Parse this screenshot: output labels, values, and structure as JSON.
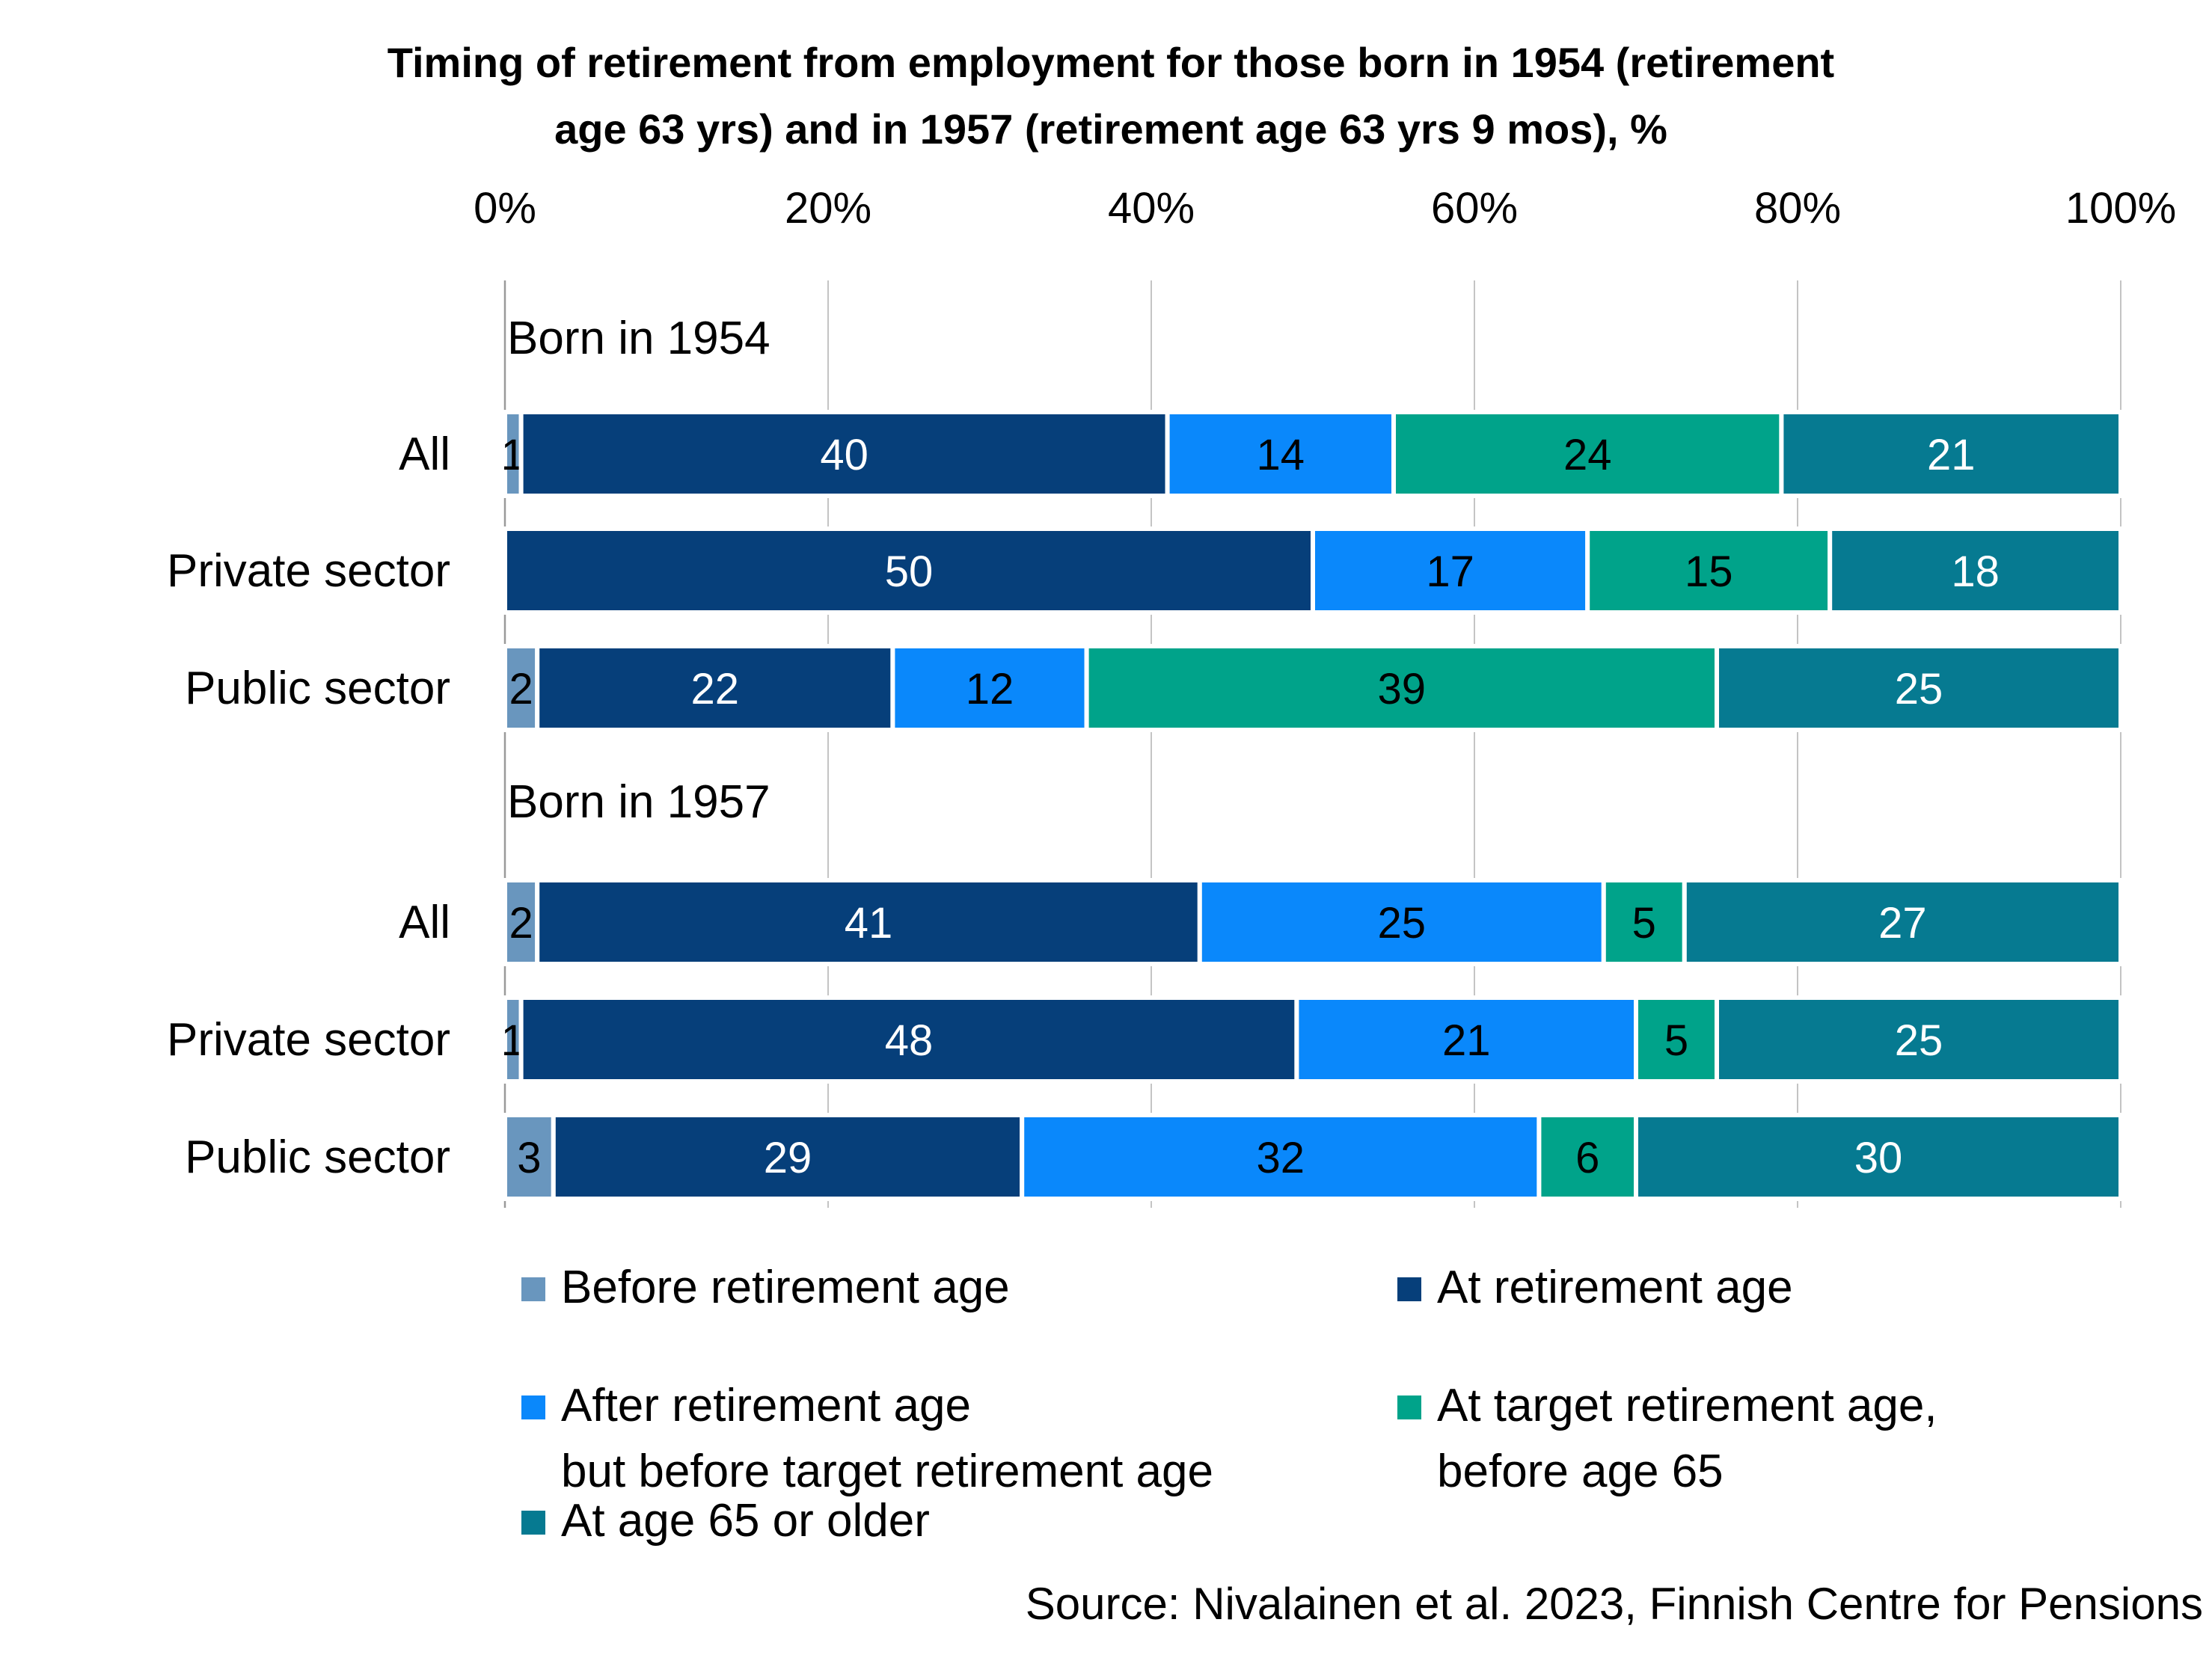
{
  "title_lines": [
    "Timing of retirement from employment for those born in 1954 (retirement",
    "age 63 yrs) and in 1957 (retirement age 63 yrs 9 mos), %"
  ],
  "source": "Source: Nivalainen et al. 2023, Finnish Centre for Pensions",
  "legend": {
    "items": [
      {
        "key": "before",
        "lines": [
          "Before retirement age"
        ]
      },
      {
        "key": "at",
        "lines": [
          "At retirement age"
        ]
      },
      {
        "key": "after",
        "lines": [
          "After retirement age",
          "but before target retirement age"
        ]
      },
      {
        "key": "target",
        "lines": [
          "At target retirement age,",
          "before age 65"
        ]
      },
      {
        "key": "age65",
        "lines": [
          "At age 65 or older"
        ]
      }
    ]
  },
  "chart_data": {
    "type": "bar",
    "orientation": "horizontal",
    "stacked": true,
    "percent_stacked": true,
    "xlim": [
      0,
      100
    ],
    "x_ticks": [
      "0%",
      "20%",
      "40%",
      "60%",
      "80%",
      "100%"
    ],
    "x_axis_position": "top",
    "grid": true,
    "legend_position": "bottom",
    "series": [
      {
        "key": "before",
        "name": "Before retirement age",
        "color": "#6996BE"
      },
      {
        "key": "at",
        "name": "At retirement age",
        "color": "#063F7A"
      },
      {
        "key": "after",
        "name": "After retirement age but before target retirement age",
        "color": "#0A88FB"
      },
      {
        "key": "target",
        "name": "At target retirement age, before age 65",
        "color": "#00A38A"
      },
      {
        "key": "age65",
        "name": "At age 65 or older",
        "color": "#067A91"
      }
    ],
    "groups": [
      {
        "label": "Born in 1954",
        "rows": [
          {
            "label": "All",
            "values": [
              1,
              40,
              14,
              24,
              21
            ],
            "value_labels": [
              "1",
              "40",
              "14",
              "24",
              "21"
            ]
          },
          {
            "label": "Private sector",
            "values": [
              0,
              50,
              17,
              15,
              18
            ],
            "value_labels": [
              "",
              "50",
              "17",
              "15",
              "18"
            ]
          },
          {
            "label": "Public sector",
            "values": [
              2,
              22,
              12,
              39,
              25
            ],
            "value_labels": [
              "2",
              "22",
              "12",
              "39",
              "25"
            ]
          }
        ]
      },
      {
        "label": "Born in 1957",
        "rows": [
          {
            "label": "All",
            "values": [
              2,
              41,
              25,
              5,
              27
            ],
            "value_labels": [
              "2",
              "41",
              "25",
              "5",
              "27"
            ]
          },
          {
            "label": "Private sector",
            "values": [
              1,
              48,
              21,
              5,
              25
            ],
            "value_labels": [
              "1",
              "48",
              "21",
              "5",
              "25"
            ]
          },
          {
            "label": "Public sector",
            "values": [
              3,
              29,
              32,
              6,
              30
            ],
            "value_labels": [
              "3",
              "29",
              "32",
              "6",
              "30"
            ]
          }
        ]
      }
    ]
  }
}
